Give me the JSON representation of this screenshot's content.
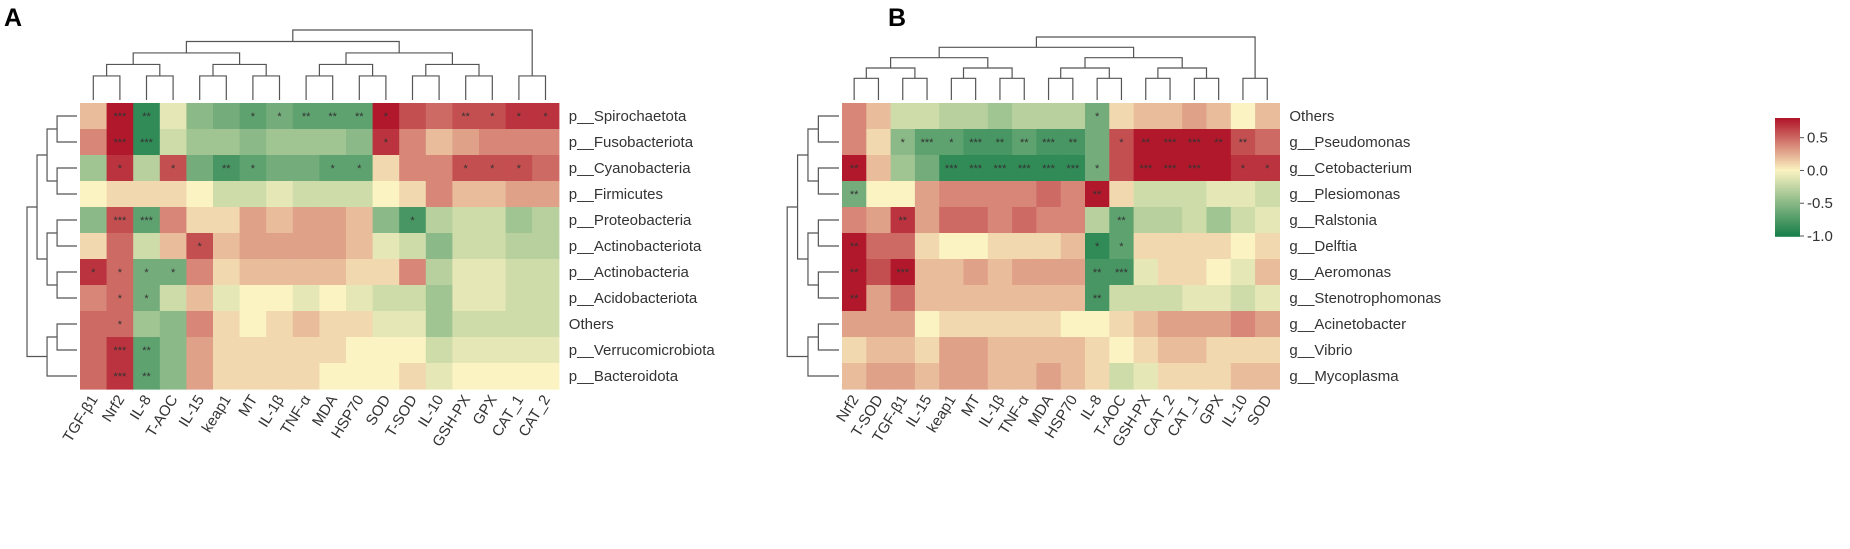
{
  "chart_data": [
    {
      "panel": "A",
      "type": "heatmap",
      "rows": [
        "p__Spirochaetota",
        "p__Fusobacteriota",
        "p__Cyanobacteria",
        "p__Firmicutes",
        "p__Proteobacteria",
        "p__Actinobacteriota",
        "p__Actinobacteria",
        "p__Acidobacteriota",
        "Others",
        "p__Verrucomicrobiota",
        "p__Bacteroidota"
      ],
      "columns": [
        "TGF-β1",
        "Nrf2",
        "IL-8",
        "T-AOC",
        "IL-15",
        "keap1",
        "MT",
        "IL-1β",
        "TNF-α",
        "MDA",
        "HSP70",
        "SOD",
        "T-SOD",
        "IL-10",
        "GSH-PX",
        "GPX",
        "CAT_1",
        "CAT_2"
      ],
      "values": [
        [
          0.2,
          0.8,
          -0.9,
          -0.1,
          -0.5,
          -0.6,
          -0.7,
          -0.6,
          -0.7,
          -0.7,
          -0.7,
          0.8,
          0.6,
          0.5,
          0.6,
          0.6,
          0.7,
          0.7
        ],
        [
          0.4,
          0.8,
          -0.9,
          -0.2,
          -0.4,
          -0.4,
          -0.5,
          -0.4,
          -0.4,
          -0.4,
          -0.5,
          0.7,
          0.4,
          0.2,
          0.3,
          0.4,
          0.4,
          0.4
        ],
        [
          -0.4,
          0.7,
          -0.3,
          0.6,
          -0.6,
          -0.8,
          -0.7,
          -0.6,
          -0.6,
          -0.7,
          -0.7,
          0.1,
          0.4,
          0.4,
          0.6,
          0.6,
          0.6,
          0.5
        ],
        [
          0.0,
          0.1,
          0.1,
          0.1,
          0.0,
          -0.2,
          -0.2,
          -0.1,
          -0.2,
          -0.2,
          -0.2,
          0.0,
          0.1,
          0.4,
          0.2,
          0.2,
          0.3,
          0.3
        ],
        [
          -0.5,
          0.6,
          -0.7,
          0.4,
          0.1,
          0.1,
          0.3,
          0.2,
          0.3,
          0.3,
          0.2,
          -0.5,
          -0.8,
          -0.3,
          -0.2,
          -0.2,
          -0.4,
          -0.3
        ],
        [
          0.1,
          0.5,
          -0.2,
          0.2,
          0.6,
          0.2,
          0.3,
          0.3,
          0.3,
          0.3,
          0.2,
          -0.1,
          -0.2,
          -0.5,
          -0.2,
          -0.2,
          -0.3,
          -0.3
        ],
        [
          0.7,
          0.5,
          -0.6,
          -0.6,
          0.4,
          0.1,
          0.2,
          0.2,
          0.2,
          0.2,
          0.1,
          0.1,
          0.4,
          -0.3,
          -0.1,
          -0.1,
          -0.2,
          -0.2
        ],
        [
          0.4,
          0.5,
          -0.6,
          -0.2,
          0.2,
          -0.1,
          0.0,
          0.0,
          -0.1,
          0.0,
          -0.1,
          -0.2,
          -0.2,
          -0.4,
          -0.1,
          -0.1,
          -0.2,
          -0.2
        ],
        [
          0.5,
          0.5,
          -0.4,
          -0.5,
          0.4,
          0.1,
          0.0,
          0.1,
          0.2,
          0.1,
          0.1,
          -0.1,
          -0.1,
          -0.4,
          -0.2,
          -0.2,
          -0.2,
          -0.2
        ],
        [
          0.5,
          0.7,
          -0.7,
          -0.5,
          0.3,
          0.1,
          0.1,
          0.1,
          0.1,
          0.1,
          0.0,
          0.0,
          0.0,
          -0.2,
          -0.1,
          -0.1,
          -0.1,
          -0.1
        ],
        [
          0.5,
          0.7,
          -0.7,
          -0.5,
          0.3,
          0.1,
          0.1,
          0.1,
          0.1,
          0.0,
          0.0,
          0.0,
          0.1,
          -0.1,
          0.0,
          0.0,
          0.0,
          0.0
        ]
      ],
      "significance": [
        [
          "",
          "***",
          "**",
          "",
          "",
          "",
          "*",
          "*",
          "**",
          "**",
          "**",
          "*",
          "",
          "",
          "**",
          "*",
          "*",
          "*"
        ],
        [
          "",
          "***",
          "***",
          "",
          "",
          "",
          "",
          "",
          "",
          "",
          "",
          "*",
          "",
          "",
          "",
          "",
          "",
          ""
        ],
        [
          "",
          "*",
          "",
          "*",
          "",
          "**",
          "*",
          "",
          "",
          "*",
          "*",
          "",
          "",
          "",
          "*",
          "*",
          "*",
          ""
        ],
        [
          "",
          "",
          "",
          "",
          "",
          "",
          "",
          "",
          "",
          "",
          "",
          "",
          "",
          "",
          "",
          "",
          "",
          ""
        ],
        [
          "",
          "***",
          "***",
          "",
          "",
          "",
          "",
          "",
          "",
          "",
          "",
          "",
          "*",
          "",
          "",
          "",
          "",
          ""
        ],
        [
          "",
          "",
          "",
          "",
          "*",
          "",
          "",
          "",
          "",
          "",
          "",
          "",
          "",
          "",
          "",
          "",
          "",
          ""
        ],
        [
          "*",
          "*",
          "*",
          "*",
          "",
          "",
          "",
          "",
          "",
          "",
          "",
          "",
          "",
          "",
          "",
          "",
          "",
          ""
        ],
        [
          "",
          "*",
          "*",
          "",
          "",
          "",
          "",
          "",
          "",
          "",
          "",
          "",
          "",
          "",
          "",
          "",
          "",
          ""
        ],
        [
          "",
          "*",
          "",
          "",
          "",
          "",
          "",
          "",
          "",
          "",
          "",
          "",
          "",
          "",
          "",
          "",
          "",
          ""
        ],
        [
          "",
          "***",
          "**",
          "",
          "",
          "",
          "",
          "",
          "",
          "",
          "",
          "",
          "",
          "",
          "",
          "",
          "",
          ""
        ],
        [
          "",
          "***",
          "**",
          "",
          "",
          "",
          "",
          "",
          "",
          "",
          "",
          "",
          "",
          "",
          "",
          "",
          "",
          ""
        ]
      ]
    },
    {
      "panel": "B",
      "type": "heatmap",
      "rows": [
        "Others",
        "g__Pseudomonas",
        "g__Cetobacterium",
        "g__Plesiomonas",
        "g__Ralstonia",
        "g__Delftia",
        "g__Aeromonas",
        "g__Stenotrophomonas",
        "g__Acinetobacter",
        "g__Vibrio",
        "g__Mycoplasma"
      ],
      "columns": [
        "Nrf2",
        "T-SOD",
        "TGF-β1",
        "IL-15",
        "keap1",
        "MT",
        "IL-1β",
        "TNF-α",
        "MDA",
        "HSP70",
        "IL-8",
        "T-AOC",
        "GSH-PX",
        "CAT_2",
        "CAT_1",
        "GPX",
        "IL-10",
        "SOD"
      ],
      "values": [
        [
          0.4,
          0.2,
          -0.2,
          -0.2,
          -0.3,
          -0.3,
          -0.4,
          -0.3,
          -0.3,
          -0.3,
          -0.6,
          0.1,
          0.2,
          0.2,
          0.3,
          0.2,
          0.0,
          0.2
        ],
        [
          0.4,
          0.1,
          -0.5,
          -0.7,
          -0.7,
          -0.8,
          -0.8,
          -0.7,
          -0.8,
          -0.8,
          -0.6,
          0.6,
          0.8,
          0.9,
          0.9,
          0.9,
          0.6,
          0.5
        ],
        [
          0.8,
          0.2,
          -0.4,
          -0.6,
          -0.9,
          -0.9,
          -0.9,
          -0.9,
          -0.9,
          -0.9,
          -0.6,
          0.6,
          0.9,
          0.9,
          0.9,
          0.9,
          0.7,
          0.7
        ],
        [
          -0.6,
          0.0,
          0.0,
          0.3,
          0.4,
          0.4,
          0.4,
          0.4,
          0.5,
          0.4,
          0.8,
          0.1,
          -0.2,
          -0.2,
          -0.2,
          -0.1,
          -0.1,
          -0.2
        ],
        [
          0.4,
          0.3,
          0.7,
          0.3,
          0.5,
          0.5,
          0.4,
          0.5,
          0.4,
          0.4,
          -0.3,
          -0.7,
          -0.3,
          -0.3,
          -0.2,
          -0.4,
          -0.2,
          -0.1
        ],
        [
          0.8,
          0.5,
          0.5,
          0.1,
          0.0,
          0.0,
          0.1,
          0.1,
          0.1,
          0.2,
          -0.9,
          -0.7,
          0.1,
          0.1,
          0.1,
          0.1,
          0.0,
          0.1
        ],
        [
          0.8,
          0.6,
          0.9,
          0.2,
          0.2,
          0.3,
          0.2,
          0.3,
          0.3,
          0.3,
          -0.8,
          -0.8,
          -0.1,
          0.1,
          0.1,
          0.0,
          -0.1,
          0.2
        ],
        [
          0.8,
          0.3,
          0.5,
          0.2,
          0.2,
          0.2,
          0.2,
          0.2,
          0.2,
          0.2,
          -0.8,
          -0.2,
          -0.2,
          -0.2,
          -0.1,
          -0.1,
          -0.2,
          -0.1
        ],
        [
          0.3,
          0.3,
          0.3,
          0.0,
          0.1,
          0.1,
          0.1,
          0.1,
          0.1,
          0.0,
          0.0,
          0.1,
          0.2,
          0.3,
          0.3,
          0.3,
          0.4,
          0.3
        ],
        [
          0.1,
          0.2,
          0.2,
          0.1,
          0.3,
          0.3,
          0.2,
          0.2,
          0.2,
          0.2,
          0.1,
          0.0,
          0.1,
          0.2,
          0.2,
          0.1,
          0.1,
          0.1
        ],
        [
          0.2,
          0.3,
          0.3,
          0.2,
          0.3,
          0.3,
          0.2,
          0.2,
          0.3,
          0.2,
          0.1,
          -0.2,
          -0.1,
          0.1,
          0.1,
          0.1,
          0.2,
          0.2
        ]
      ],
      "significance": [
        [
          "",
          "",
          "",
          "",
          "",
          "",
          "",
          "",
          "",
          "",
          "*",
          "",
          "",
          "",
          "",
          "",
          "",
          ""
        ],
        [
          "",
          "",
          "*",
          "***",
          "*",
          "***",
          "**",
          "**",
          "***",
          "**",
          "",
          "*",
          "**",
          "***",
          "***",
          "**",
          "**",
          ""
        ],
        [
          "**",
          "",
          "",
          "",
          "***",
          "***",
          "***",
          "***",
          "***",
          "***",
          "*",
          "",
          "***",
          "***",
          "***",
          "",
          "*",
          "*"
        ],
        [
          "**",
          "",
          "",
          "",
          "",
          "",
          "",
          "",
          "",
          "",
          "**",
          "",
          "",
          "",
          "",
          "",
          "",
          ""
        ],
        [
          "",
          "",
          "**",
          "",
          "",
          "",
          "",
          "",
          "",
          "",
          "",
          "**",
          "",
          "",
          "",
          "",
          "",
          ""
        ],
        [
          "**",
          "",
          "",
          "",
          "",
          "",
          "",
          "",
          "",
          "",
          "*",
          "*",
          "",
          "",
          "",
          "",
          "",
          ""
        ],
        [
          "**",
          "",
          "***",
          "",
          "",
          "",
          "",
          "",
          "",
          "",
          "**",
          "***",
          "",
          "",
          "",
          "",
          "",
          ""
        ],
        [
          "**",
          "",
          "",
          "",
          "",
          "",
          "",
          "",
          "",
          "",
          "**",
          "",
          "",
          "",
          "",
          "",
          "",
          ""
        ],
        [
          "",
          "",
          "",
          "",
          "",
          "",
          "",
          "",
          "",
          "",
          "",
          "",
          "",
          "",
          "",
          "",
          "",
          ""
        ],
        [
          "",
          "",
          "",
          "",
          "",
          "",
          "",
          "",
          "",
          "",
          "",
          "",
          "",
          "",
          "",
          "",
          "",
          ""
        ],
        [
          "",
          "",
          "",
          "",
          "",
          "",
          "",
          "",
          "",
          "",
          "",
          "",
          "",
          "",
          "",
          "",
          "",
          ""
        ]
      ]
    }
  ],
  "colorbar": {
    "ticks": [
      "0.5",
      "0.0",
      "-0.5",
      "-1.0"
    ],
    "range": [
      -1.0,
      0.8
    ]
  },
  "colors": {
    "high": "#b2182b",
    "mid": "#fbf3c2",
    "low": "#1a7f4b"
  }
}
